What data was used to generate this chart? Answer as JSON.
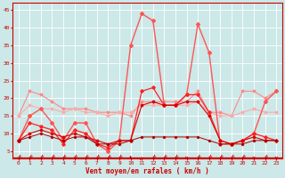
{
  "title": "",
  "xlabel": "Vent moyen/en rafales ( km/h )",
  "background_color": "#cce8e8",
  "grid_color": "#ffffff",
  "x_ticks": [
    0,
    1,
    2,
    3,
    4,
    5,
    6,
    7,
    8,
    9,
    10,
    11,
    12,
    13,
    14,
    15,
    16,
    17,
    18,
    19,
    20,
    21,
    22,
    23
  ],
  "y_ticks": [
    5,
    10,
    15,
    20,
    25,
    30,
    35,
    40,
    45
  ],
  "ylim": [
    3,
    47
  ],
  "xlim": [
    -0.5,
    23.5
  ],
  "series": [
    {
      "color": "#ff8888",
      "linewidth": 0.8,
      "marker": "D",
      "markersize": 1.5,
      "data": [
        15,
        22,
        21,
        19,
        17,
        17,
        17,
        16,
        16,
        16,
        15,
        19,
        19,
        19,
        19,
        19,
        22,
        16,
        16,
        15,
        22,
        22,
        20,
        22
      ]
    },
    {
      "color": "#ffaaaa",
      "linewidth": 0.8,
      "marker": "D",
      "markersize": 1.5,
      "data": [
        15,
        18,
        17,
        17,
        16,
        17,
        16,
        16,
        15,
        16,
        16,
        18,
        18,
        18,
        18,
        18,
        19,
        16,
        15,
        15,
        16,
        17,
        16,
        16
      ]
    },
    {
      "color": "#ff5555",
      "linewidth": 1.0,
      "marker": "D",
      "markersize": 2.0,
      "data": [
        8,
        15,
        17,
        13,
        8,
        13,
        13,
        7,
        5,
        8,
        35,
        44,
        42,
        18,
        18,
        21,
        41,
        33,
        7,
        7,
        8,
        10,
        19,
        22
      ]
    },
    {
      "color": "#ff2222",
      "linewidth": 0.9,
      "marker": "D",
      "markersize": 1.8,
      "data": [
        8,
        13,
        12,
        11,
        7,
        11,
        10,
        7,
        6,
        8,
        8,
        22,
        23,
        18,
        18,
        21,
        21,
        16,
        8,
        7,
        8,
        10,
        9,
        8
      ]
    },
    {
      "color": "#dd0000",
      "linewidth": 0.8,
      "marker": "D",
      "markersize": 1.5,
      "data": [
        8,
        10,
        11,
        10,
        9,
        10,
        9,
        8,
        7,
        8,
        8,
        18,
        19,
        18,
        18,
        19,
        19,
        15,
        8,
        7,
        8,
        9,
        8,
        8
      ]
    },
    {
      "color": "#aa0000",
      "linewidth": 0.7,
      "marker": "D",
      "markersize": 1.2,
      "data": [
        8,
        9,
        10,
        9,
        8,
        9,
        9,
        7,
        7,
        7,
        8,
        9,
        9,
        9,
        9,
        9,
        9,
        8,
        7,
        7,
        7,
        8,
        8,
        8
      ]
    }
  ],
  "tick_label_color": "#cc0000",
  "axis_label_color": "#cc0000",
  "arrow_angles_deg": [
    225,
    225,
    225,
    225,
    225,
    225,
    225,
    225,
    225,
    225,
    90,
    45,
    225,
    225,
    225,
    270,
    225,
    225,
    225,
    225,
    225,
    270,
    225,
    270
  ]
}
